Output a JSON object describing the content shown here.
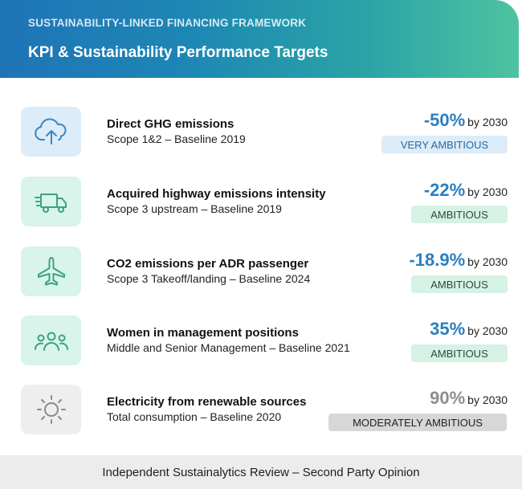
{
  "header": {
    "subtitle": "SUSTAINABILITY-LINKED FINANCING FRAMEWORK",
    "title": "KPI & Sustainability Performance Targets"
  },
  "kpis": [
    {
      "icon": "cloud-upload-icon",
      "title": "Direct GHG emissions",
      "subtitle": "Scope 1&2 – Baseline 2019",
      "target_value": "-50%",
      "target_by": "by 2030",
      "rating": "VERY AMBITIOUS",
      "value_color": "#2a7fbf"
    },
    {
      "icon": "truck-icon",
      "title": "Acquired highway emissions intensity",
      "subtitle": "Scope 3 upstream – Baseline 2019",
      "target_value": "-22%",
      "target_by": "by 2030",
      "rating": "AMBITIOUS",
      "value_color": "#2a7fbf"
    },
    {
      "icon": "airplane-icon",
      "title": "CO2 emissions per ADR passenger",
      "subtitle": "Scope 3 Takeoff/landing – Baseline 2024",
      "target_value": "-18.9%",
      "target_by": "by 2030",
      "rating": "AMBITIOUS",
      "value_color": "#2a7fbf"
    },
    {
      "icon": "people-group-icon",
      "title": "Women in management positions",
      "subtitle": "Middle and Senior Management – Baseline 2021",
      "target_value": "35%",
      "target_by": "by 2030",
      "rating": "AMBITIOUS",
      "value_color": "#2a7fbf"
    },
    {
      "icon": "sun-icon",
      "title": "Electricity from renewable sources",
      "subtitle": "Total consumption – Baseline 2020",
      "target_value": "90%",
      "target_by": "by 2030",
      "rating": "MODERATELY AMBITIOUS",
      "value_color": "#8d8d8d"
    }
  ],
  "footer": {
    "text": "Independent Sustainalytics Review – Second Party Opinion"
  },
  "colors": {
    "header_gradient": [
      "#1f74b6",
      "#4dc3a0"
    ],
    "very_ambitious_badge": "#dcecf9",
    "ambitious_badge": "#d5f2e4",
    "moderately_ambitious_badge": "#d7d7d7"
  }
}
